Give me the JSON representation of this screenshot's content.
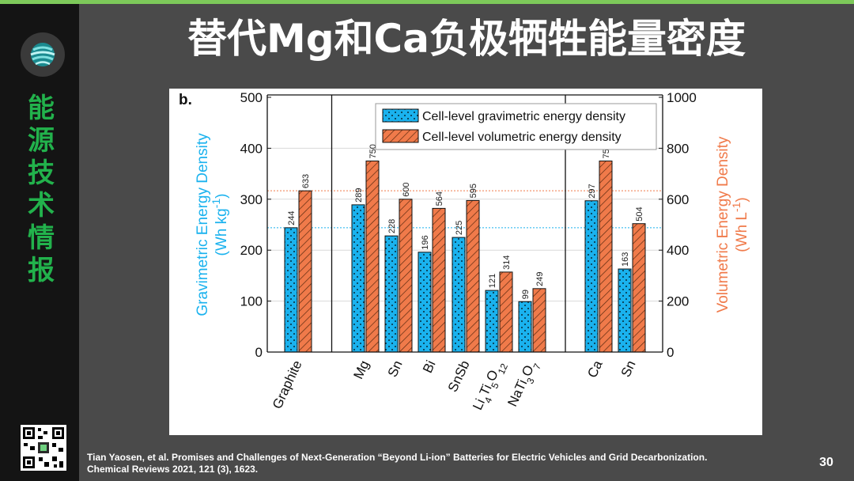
{
  "slide": {
    "title": "替代Mg和Ca负极牺牲能量密度",
    "sidebar_title": "能源技术情报",
    "page_number": "30",
    "citation_line1": "Tian Yaosen, et al. Promises and Challenges of Next-Generation “Beyond Li-ion” Batteries for Electric Vehicles and Grid Decarbonization.",
    "citation_line2": "Chemical Reviews 2021, 121 (3), 1623.",
    "logo_icon": "globe-logo-icon",
    "qr_icon": "qr-code-icon"
  },
  "chart_data": {
    "type": "bar",
    "panel_label": "b.",
    "categories": [
      "Graphite",
      "Mg",
      "Sn",
      "Bi",
      "SnSb",
      "Li4Ti5O12",
      "NaTi3O7",
      "Ca",
      "Sn"
    ],
    "category_labels": [
      {
        "parts": [
          {
            "t": "Graphite"
          }
        ]
      },
      {
        "parts": [
          {
            "t": "Mg"
          }
        ]
      },
      {
        "parts": [
          {
            "t": "Sn"
          }
        ]
      },
      {
        "parts": [
          {
            "t": "Bi"
          }
        ]
      },
      {
        "parts": [
          {
            "t": "SnSb"
          }
        ]
      },
      {
        "parts": [
          {
            "t": "Li"
          },
          {
            "t": "4",
            "sub": true
          },
          {
            "t": "Ti"
          },
          {
            "t": "5",
            "sub": true
          },
          {
            "t": "O"
          },
          {
            "t": "12",
            "sub": true
          }
        ]
      },
      {
        "parts": [
          {
            "t": "NaTi"
          },
          {
            "t": "3",
            "sub": true
          },
          {
            "t": "O"
          },
          {
            "t": "7",
            "sub": true
          }
        ]
      },
      {
        "parts": [
          {
            "t": "Ca"
          }
        ]
      },
      {
        "parts": [
          {
            "t": "Sn"
          }
        ]
      }
    ],
    "series": [
      {
        "name": "Cell-level gravimetric energy density",
        "axis": "left",
        "color": "#1ab2ee",
        "pattern": "dots",
        "values": [
          244,
          289,
          228,
          196,
          225,
          121,
          99,
          297,
          163
        ]
      },
      {
        "name": "Cell-level volumetric energy density",
        "axis": "right",
        "color": "#f07a4a",
        "pattern": "hatch",
        "values": [
          633,
          750,
          600,
          564,
          595,
          314,
          249,
          750,
          504
        ]
      }
    ],
    "ylabel_left_line1": "Gravimetric Energy Density",
    "ylabel_left_line2": {
      "parts": [
        {
          "t": "(Wh kg"
        },
        {
          "t": "-1",
          "sup": true
        },
        {
          "t": ")"
        }
      ]
    },
    "ylabel_right_line1": "Volumetric Energy Density",
    "ylabel_right_line2": {
      "parts": [
        {
          "t": "(Wh L"
        },
        {
          "t": "-1",
          "sup": true
        },
        {
          "t": ")"
        }
      ]
    },
    "ylim_left": [
      0,
      500
    ],
    "ylim_right": [
      0,
      1000
    ],
    "yticks_left": [
      0,
      100,
      200,
      300,
      400,
      500
    ],
    "yticks_right": [
      0,
      200,
      400,
      600,
      800,
      1000
    ],
    "reference_lines": [
      {
        "axis": "left",
        "value": 244,
        "color": "#1ab2ee"
      },
      {
        "axis": "right",
        "value": 633,
        "color": "#f07a4a"
      }
    ],
    "group_dividers_after": [
      0,
      6
    ],
    "legend_position": "top-center",
    "grid": "horizontal"
  }
}
